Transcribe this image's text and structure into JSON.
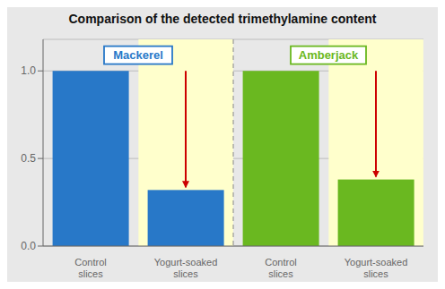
{
  "chart_data": {
    "type": "bar",
    "title": "Comparison of the detected trimethylamine content",
    "categories": [
      "Control\nslices",
      "Yogurt-soaked\nslices",
      "Control\nslices",
      "Yogurt-soaked\nslices"
    ],
    "values": [
      1.0,
      0.32,
      1.0,
      0.38
    ],
    "colors": [
      "#2878c8",
      "#2878c8",
      "#6ab820",
      "#6ab820"
    ],
    "ylim": [
      0.0,
      1.18
    ],
    "yticks": [
      {
        "value": 0.0,
        "label": "0.0"
      },
      {
        "value": 0.5,
        "label": "0.5"
      },
      {
        "value": 1.0,
        "label": "1.0"
      }
    ],
    "grid": true,
    "annotations": [
      {
        "text": "Mackerel",
        "color": "#2878c8"
      },
      {
        "text": "Amberjack",
        "color": "#6ab820"
      }
    ]
  }
}
